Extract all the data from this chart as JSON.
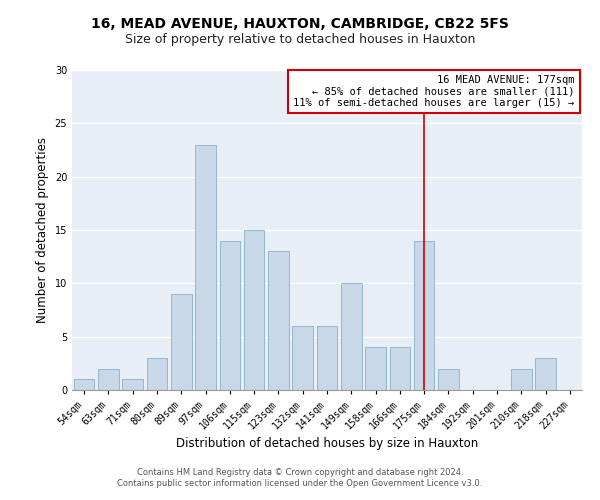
{
  "title": "16, MEAD AVENUE, HAUXTON, CAMBRIDGE, CB22 5FS",
  "subtitle": "Size of property relative to detached houses in Hauxton",
  "xlabel": "Distribution of detached houses by size in Hauxton",
  "ylabel": "Number of detached properties",
  "categories": [
    "54sqm",
    "63sqm",
    "71sqm",
    "80sqm",
    "89sqm",
    "97sqm",
    "106sqm",
    "115sqm",
    "123sqm",
    "132sqm",
    "141sqm",
    "149sqm",
    "158sqm",
    "166sqm",
    "175sqm",
    "184sqm",
    "192sqm",
    "201sqm",
    "210sqm",
    "218sqm",
    "227sqm"
  ],
  "values": [
    1,
    2,
    1,
    3,
    9,
    23,
    14,
    15,
    13,
    6,
    6,
    10,
    4,
    4,
    14,
    2,
    0,
    0,
    2,
    3,
    0
  ],
  "bar_color": "#c8d8e8",
  "bar_edge_color": "#8aafc8",
  "bar_linewidth": 0.6,
  "vline_x_index": 14,
  "vline_color": "#cc0000",
  "annotation_title": "16 MEAD AVENUE: 177sqm",
  "annotation_line1": "← 85% of detached houses are smaller (111)",
  "annotation_line2": "11% of semi-detached houses are larger (15) →",
  "annotation_box_color": "#cc0000",
  "annotation_bg": "#ffffff",
  "ylim": [
    0,
    30
  ],
  "yticks": [
    0,
    5,
    10,
    15,
    20,
    25,
    30
  ],
  "footer_line1": "Contains HM Land Registry data © Crown copyright and database right 2024.",
  "footer_line2": "Contains public sector information licensed under the Open Government Licence v3.0.",
  "plot_bg_color": "#e8eef5",
  "title_fontsize": 10,
  "subtitle_fontsize": 9,
  "tick_fontsize": 7,
  "ylabel_fontsize": 8.5,
  "xlabel_fontsize": 8.5,
  "annotation_fontsize": 7.5,
  "footer_fontsize": 6
}
